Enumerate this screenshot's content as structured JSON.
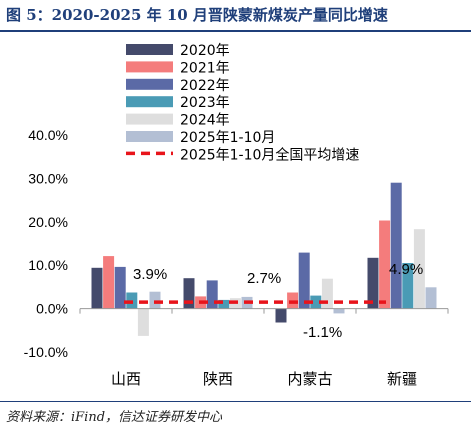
{
  "header": {
    "title": "图 5：2020-2025 年 10 月晋陕蒙新煤炭产量同比增速"
  },
  "footer": {
    "source": "资料来源：iFind，信达证券研发中心"
  },
  "colors": {
    "s2020": "#444a6b",
    "s2021": "#f47c7c",
    "s2022": "#5b6aa6",
    "s2023": "#4a9bb5",
    "s2024": "#dedede",
    "s2025": "#b3bfd4",
    "avg": "#e8141b",
    "axis": "#999999",
    "text": "#000000"
  },
  "chart_data": {
    "type": "bar",
    "title": "",
    "xlabel": "",
    "ylabel": "",
    "ylim": [
      -10,
      40
    ],
    "yticks": [
      -10,
      0,
      10,
      20,
      30,
      40
    ],
    "ytick_labels": [
      "-10.0%",
      "0.0%",
      "10.0%",
      "20.0%",
      "30.0%",
      "40.0%"
    ],
    "categories": [
      "山西",
      "陕西",
      "内蒙古",
      "新疆"
    ],
    "series": [
      {
        "name": "2020年",
        "values": [
          9.4,
          7.0,
          -3.2,
          11.7
        ]
      },
      {
        "name": "2021年",
        "values": [
          12.1,
          2.8,
          3.7,
          20.3
        ]
      },
      {
        "name": "2022年",
        "values": [
          9.6,
          6.5,
          12.9,
          29.0
        ]
      },
      {
        "name": "2023年",
        "values": [
          3.7,
          2.0,
          3.0,
          10.5
        ]
      },
      {
        "name": "2024年",
        "values": [
          -6.3,
          2.4,
          6.9,
          18.3
        ]
      },
      {
        "name": "2025年1-10月",
        "values": [
          3.9,
          2.7,
          -1.1,
          4.9
        ]
      }
    ],
    "average_line": {
      "name": "2025年1-10月全国平均增速",
      "value": 1.5
    },
    "annotations": [
      "3.9%",
      "2.7%",
      "-1.1%",
      "4.9%"
    ],
    "legend_position": "top-right",
    "grid": false
  }
}
